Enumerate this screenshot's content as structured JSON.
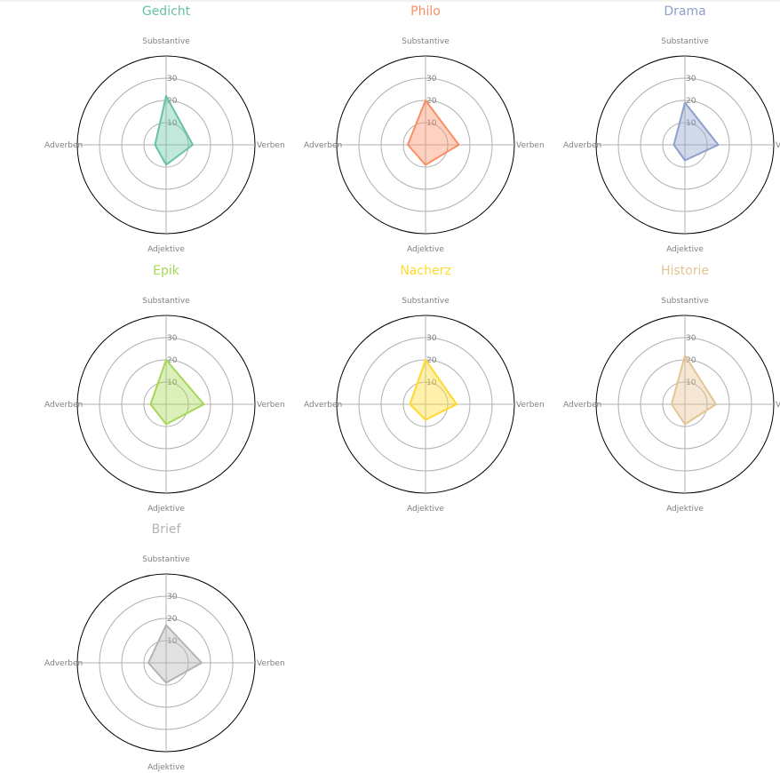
{
  "chart_data": [
    {
      "type": "radar",
      "title": "Gedicht",
      "color": "#66c2a5",
      "axes": [
        "Substantive",
        "Verben",
        "Adjektive",
        "Adverben"
      ],
      "values": [
        22,
        12,
        9,
        5
      ],
      "rlim": [
        0,
        40
      ],
      "rticks": [
        "10",
        "20",
        "30"
      ],
      "grid": true
    },
    {
      "type": "radar",
      "title": "Philo",
      "color": "#fc8d62",
      "axes": [
        "Substantive",
        "Verben",
        "Adjektive",
        "Adverben"
      ],
      "values": [
        20,
        15,
        9,
        8
      ],
      "rlim": [
        0,
        40
      ],
      "rticks": [
        "10",
        "20",
        "30"
      ],
      "grid": true
    },
    {
      "type": "radar",
      "title": "Drama",
      "color": "#8da0cb",
      "axes": [
        "Substantive",
        "Verben",
        "Adjektive",
        "Adverben"
      ],
      "values": [
        19,
        15,
        7,
        5
      ],
      "rlim": [
        0,
        40
      ],
      "rticks": [
        "10",
        "20",
        "30"
      ],
      "grid": true
    },
    {
      "type": "radar",
      "title": "Epik",
      "color": "#a6d854",
      "axes": [
        "Substantive",
        "Verben",
        "Adjektive",
        "Adverben"
      ],
      "values": [
        20,
        17,
        9,
        7
      ],
      "rlim": [
        0,
        40
      ],
      "rticks": [
        "10",
        "20",
        "30"
      ],
      "grid": true
    },
    {
      "type": "radar",
      "title": "Nacherz",
      "color": "#ffd92f",
      "axes": [
        "Substantive",
        "Verben",
        "Adjektive",
        "Adverben"
      ],
      "values": [
        20,
        14,
        7,
        7
      ],
      "rlim": [
        0,
        40
      ],
      "rticks": [
        "10",
        "20",
        "30"
      ],
      "grid": true
    },
    {
      "type": "radar",
      "title": "Historie",
      "color": "#e5c494",
      "axes": [
        "Substantive",
        "Verben",
        "Adjektive",
        "Adverben"
      ],
      "values": [
        22,
        14,
        9,
        6
      ],
      "rlim": [
        0,
        40
      ],
      "rticks": [
        "10",
        "20",
        "30"
      ],
      "grid": true
    },
    {
      "type": "radar",
      "title": "Brief",
      "color": "#b3b3b3",
      "axes": [
        "Substantive",
        "Verben",
        "Adjektive",
        "Adverben"
      ],
      "values": [
        17,
        16,
        9,
        8
      ],
      "rlim": [
        0,
        40
      ],
      "rticks": [
        "10",
        "20",
        "30"
      ],
      "grid": true
    }
  ]
}
